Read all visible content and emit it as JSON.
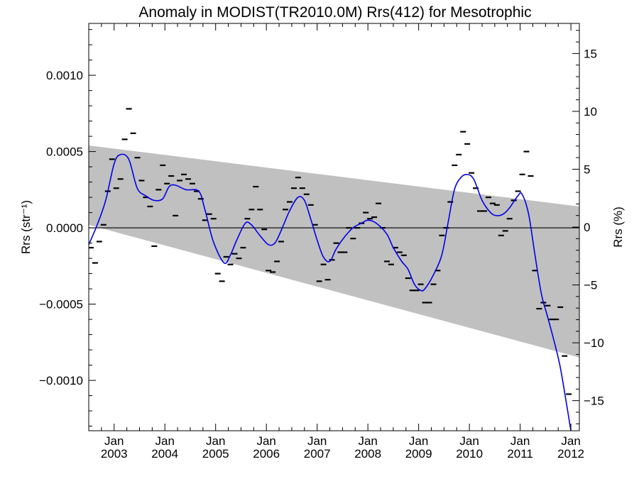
{
  "chart_data": {
    "type": "scatter",
    "title": "Anomaly in MODIST(TR2010.0M) Rrs(412) for Mesotrophic",
    "ylabel_left": "Rrs (str⁻¹)",
    "ylabel_right": "Rrs (%)",
    "xlabel": "",
    "x_axis": {
      "type": "date",
      "range": [
        "2002-07-01",
        "2012-03-01"
      ],
      "ticks": [
        {
          "date": "2003-01-01",
          "line1": "Jan",
          "line2": "2003"
        },
        {
          "date": "2004-01-01",
          "line1": "Jan",
          "line2": "2004"
        },
        {
          "date": "2005-01-01",
          "line1": "Jan",
          "line2": "2005"
        },
        {
          "date": "2006-01-01",
          "line1": "Jan",
          "line2": "2006"
        },
        {
          "date": "2007-01-01",
          "line1": "Jan",
          "line2": "2007"
        },
        {
          "date": "2008-01-01",
          "line1": "Jan",
          "line2": "2008"
        },
        {
          "date": "2009-01-01",
          "line1": "Jan",
          "line2": "2009"
        },
        {
          "date": "2010-01-01",
          "line1": "Jan",
          "line2": "2010"
        },
        {
          "date": "2011-01-01",
          "line1": "Jan",
          "line2": "2011"
        },
        {
          "date": "2012-01-01",
          "line1": "Jan",
          "line2": "2012"
        }
      ]
    },
    "y_left": {
      "range": [
        -0.00133,
        0.00134
      ],
      "ticks": [
        {
          "value": 0.001,
          "label": "0.0010"
        },
        {
          "value": 0.0005,
          "label": "0.0005"
        },
        {
          "value": 0.0,
          "label": "0.0000"
        },
        {
          "value": -0.0005,
          "label": "−0.0005"
        },
        {
          "value": -0.001,
          "label": "−0.0010"
        }
      ]
    },
    "y_right": {
      "range": [
        -17.6,
        17.6
      ],
      "ticks": [
        {
          "value": 15,
          "label": "15"
        },
        {
          "value": 10,
          "label": "10"
        },
        {
          "value": 5,
          "label": "5"
        },
        {
          "value": 0,
          "label": "0"
        },
        {
          "value": -5,
          "label": "−5"
        },
        {
          "value": -10,
          "label": "−10"
        },
        {
          "value": -15,
          "label": "−15"
        }
      ]
    },
    "band": {
      "color": "#c0c0c0",
      "upper": [
        [
          "2002-07-01",
          0.00054
        ],
        [
          "2012-03-01",
          0.00014
        ]
      ],
      "lower": [
        [
          "2002-07-01",
          2e-05
        ],
        [
          "2012-03-01",
          -0.00085
        ]
      ]
    },
    "zero_line": true,
    "monthly_anomaly": {
      "color": "#000000",
      "points": [
        [
          "2002-07",
          -0.00013
        ],
        [
          "2002-08",
          -0.00023
        ],
        [
          "2002-09",
          -9e-05
        ],
        [
          "2002-10",
          2e-05
        ],
        [
          "2002-11",
          0.00024
        ],
        [
          "2002-12",
          0.00045
        ],
        [
          "2003-01",
          0.00026
        ],
        [
          "2003-02",
          0.00032
        ],
        [
          "2003-03",
          0.00058
        ],
        [
          "2003-04",
          0.00078
        ],
        [
          "2003-05",
          0.00062
        ],
        [
          "2003-06",
          0.00046
        ],
        [
          "2003-07",
          0.00031
        ],
        [
          "2003-08",
          0.0002
        ],
        [
          "2003-09",
          0.00014
        ],
        [
          "2003-10",
          -0.00012
        ],
        [
          "2003-11",
          0.00025
        ],
        [
          "2003-12",
          0.00041
        ],
        [
          "2004-01",
          0.00029
        ],
        [
          "2004-02",
          0.00034
        ],
        [
          "2004-03",
          8e-05
        ],
        [
          "2004-04",
          0.00031
        ],
        [
          "2004-05",
          0.00035
        ],
        [
          "2004-06",
          0.00032
        ],
        [
          "2004-07",
          0.00029
        ],
        [
          "2004-08",
          0.00024
        ],
        [
          "2004-09",
          0.00019
        ],
        [
          "2004-10",
          5e-05
        ],
        [
          "2004-11",
          9e-05
        ],
        [
          "2004-12",
          6e-05
        ],
        [
          "2005-01",
          -0.0003
        ],
        [
          "2005-02",
          -0.00035
        ],
        [
          "2005-03",
          -0.00019
        ],
        [
          "2005-04",
          -0.00024
        ],
        [
          "2005-05",
          -0.00017
        ],
        [
          "2005-06",
          -0.0002
        ],
        [
          "2005-07",
          -0.00013
        ],
        [
          "2005-08",
          6e-05
        ],
        [
          "2005-09",
          0.00012
        ],
        [
          "2005-10",
          0.00027
        ],
        [
          "2005-11",
          0.00012
        ],
        [
          "2005-12",
          -1e-05
        ],
        [
          "2006-01",
          -0.00028
        ],
        [
          "2006-02",
          -0.00029
        ],
        [
          "2006-03",
          -0.00022
        ],
        [
          "2006-04",
          -9e-05
        ],
        [
          "2006-05",
          0.00012
        ],
        [
          "2006-06",
          0.00017
        ],
        [
          "2006-07",
          0.00026
        ],
        [
          "2006-08",
          0.00033
        ],
        [
          "2006-09",
          0.00026
        ],
        [
          "2006-10",
          0.00022
        ],
        [
          "2006-11",
          0.00015
        ],
        [
          "2006-12",
          2e-05
        ],
        [
          "2007-01",
          -0.00035
        ],
        [
          "2007-02",
          -0.00024
        ],
        [
          "2007-03",
          -0.00034
        ],
        [
          "2007-04",
          -0.00021
        ],
        [
          "2007-05",
          -0.0001
        ],
        [
          "2007-06",
          -0.00016
        ],
        [
          "2007-07",
          -0.00016
        ],
        [
          "2007-08",
          0.0
        ],
        [
          "2007-09",
          -7e-05
        ],
        [
          "2007-10",
          0.0
        ],
        [
          "2007-11",
          3e-05
        ],
        [
          "2007-12",
          0.0001
        ],
        [
          "2008-01",
          6e-05
        ],
        [
          "2008-02",
          7e-05
        ],
        [
          "2008-03",
          0.00016
        ],
        [
          "2008-04",
          0.0
        ],
        [
          "2008-05",
          -0.00022
        ],
        [
          "2008-06",
          -0.00024
        ],
        [
          "2008-07",
          -0.00013
        ],
        [
          "2008-08",
          -0.00016
        ],
        [
          "2008-09",
          -0.00018
        ],
        [
          "2008-10",
          -0.00033
        ],
        [
          "2008-11",
          -0.00041
        ],
        [
          "2008-12",
          -0.00041
        ],
        [
          "2009-01",
          -0.00037
        ],
        [
          "2009-02",
          -0.00049
        ],
        [
          "2009-03",
          -0.00049
        ],
        [
          "2009-04",
          -0.00037
        ],
        [
          "2009-05",
          -0.00028
        ],
        [
          "2009-06",
          -5e-05
        ],
        [
          "2009-07",
          0.0
        ],
        [
          "2009-08",
          0.00017
        ],
        [
          "2009-09",
          0.00041
        ],
        [
          "2009-10",
          0.00048
        ],
        [
          "2009-11",
          0.00063
        ],
        [
          "2009-12",
          0.00055
        ],
        [
          "2010-01",
          0.00036
        ],
        [
          "2010-02",
          0.00026
        ],
        [
          "2010-03",
          0.00011
        ],
        [
          "2010-04",
          0.00011
        ],
        [
          "2010-05",
          0.0002
        ],
        [
          "2010-06",
          0.00016
        ],
        [
          "2010-07",
          0.00015
        ],
        [
          "2010-08",
          -5e-05
        ],
        [
          "2010-09",
          -2e-05
        ],
        [
          "2010-10",
          6e-05
        ],
        [
          "2010-11",
          0.00018
        ],
        [
          "2010-12",
          0.00024
        ],
        [
          "2011-01",
          0.00035
        ],
        [
          "2011-02",
          0.0005
        ],
        [
          "2011-03",
          0.00034
        ],
        [
          "2011-04",
          -0.00028
        ],
        [
          "2011-05",
          -0.00053
        ],
        [
          "2011-06",
          -0.00049
        ],
        [
          "2011-07",
          -0.00051
        ],
        [
          "2011-08",
          -0.0006
        ],
        [
          "2011-09",
          -0.0006
        ],
        [
          "2011-10",
          -0.00052
        ],
        [
          "2011-11",
          -0.00084
        ],
        [
          "2011-12",
          -0.00109
        ]
      ]
    },
    "smoothed": {
      "color": "#0000e6",
      "points": [
        [
          "2002-07-01",
          -0.00011
        ],
        [
          "2002-09-01",
          2e-05
        ],
        [
          "2002-11-01",
          0.00018
        ],
        [
          "2003-01-01",
          0.00042
        ],
        [
          "2003-02-15",
          0.00048
        ],
        [
          "2003-04-15",
          0.00045
        ],
        [
          "2003-06-15",
          0.00026
        ],
        [
          "2003-08-15",
          0.00021
        ],
        [
          "2003-10-15",
          0.00018
        ],
        [
          "2003-12-15",
          0.00019
        ],
        [
          "2004-02-01",
          0.00027
        ],
        [
          "2004-03-15",
          0.00028
        ],
        [
          "2004-06-01",
          0.00025
        ],
        [
          "2004-09-01",
          0.00024
        ],
        [
          "2004-10-15",
          0.00012
        ],
        [
          "2004-12-15",
          -9e-05
        ],
        [
          "2005-03-01",
          -0.00023
        ],
        [
          "2005-04-15",
          -0.00018
        ],
        [
          "2005-06-01",
          -8e-05
        ],
        [
          "2005-08-01",
          3e-05
        ],
        [
          "2005-09-15",
          2e-05
        ],
        [
          "2005-11-15",
          -5e-05
        ],
        [
          "2006-01-15",
          -0.00011
        ],
        [
          "2006-03-01",
          -0.0001
        ],
        [
          "2006-04-15",
          -2e-05
        ],
        [
          "2006-06-15",
          0.00011
        ],
        [
          "2006-08-15",
          0.0002
        ],
        [
          "2006-10-01",
          0.00018
        ],
        [
          "2006-11-15",
          6e-05
        ],
        [
          "2007-01-01",
          -8e-05
        ],
        [
          "2007-02-15",
          -0.00019
        ],
        [
          "2007-04-01",
          -0.00022
        ],
        [
          "2007-05-15",
          -0.00014
        ],
        [
          "2007-07-15",
          -6e-05
        ],
        [
          "2007-09-15",
          0.0
        ],
        [
          "2007-11-15",
          3e-05
        ],
        [
          "2008-01-01",
          5e-05
        ],
        [
          "2008-03-01",
          3e-05
        ],
        [
          "2008-05-15",
          -4e-05
        ],
        [
          "2008-07-01",
          -0.00013
        ],
        [
          "2008-09-01",
          -0.00022
        ],
        [
          "2008-10-15",
          -0.00027
        ],
        [
          "2008-12-01",
          -0.00037
        ],
        [
          "2009-01-15",
          -0.00041
        ],
        [
          "2009-02-15",
          -0.0004
        ],
        [
          "2009-04-15",
          -0.00031
        ],
        [
          "2009-06-15",
          -0.00018
        ],
        [
          "2009-08-01",
          4e-05
        ],
        [
          "2009-09-15",
          0.00025
        ],
        [
          "2009-11-01",
          0.00033
        ],
        [
          "2009-12-15",
          0.00035
        ],
        [
          "2010-02-01",
          0.00032
        ],
        [
          "2010-04-01",
          0.00018
        ],
        [
          "2010-06-01",
          0.0001
        ],
        [
          "2010-07-15",
          8e-05
        ],
        [
          "2010-09-01",
          9e-05
        ],
        [
          "2010-10-15",
          0.00013
        ],
        [
          "2010-12-15",
          0.00021
        ],
        [
          "2011-01-15",
          0.00022
        ],
        [
          "2011-03-01",
          9e-05
        ],
        [
          "2011-04-15",
          -0.00017
        ],
        [
          "2011-06-01",
          -0.00043
        ],
        [
          "2011-07-15",
          -0.00058
        ],
        [
          "2011-09-01",
          -0.00074
        ],
        [
          "2011-10-15",
          -0.00091
        ],
        [
          "2011-12-01",
          -0.00116
        ],
        [
          "2012-01-01",
          -0.00133
        ]
      ]
    },
    "grid": false,
    "legend": "none"
  }
}
